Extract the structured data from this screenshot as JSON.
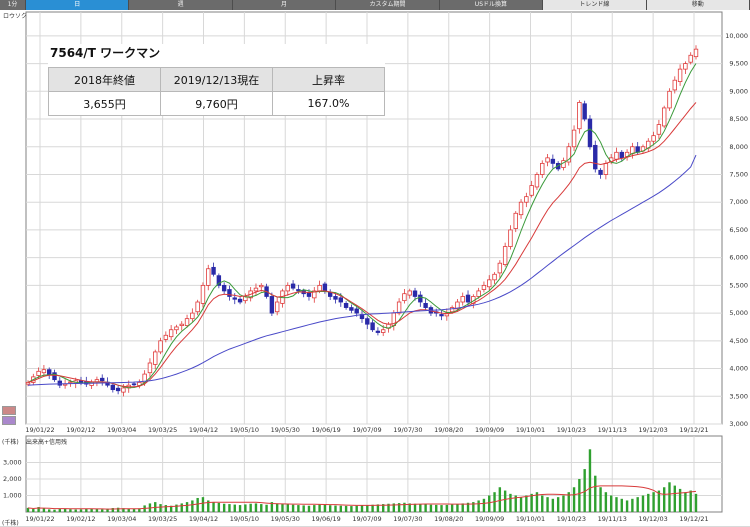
{
  "tabs": [
    {
      "label": "1分",
      "active": false
    },
    {
      "label": "日",
      "active": true
    },
    {
      "label": "週",
      "active": false
    },
    {
      "label": "月",
      "active": false
    },
    {
      "label": "カスタム期間",
      "active": false
    },
    {
      "label": "USドル換算",
      "active": false
    },
    {
      "label": "トレンド線",
      "active": false
    },
    {
      "label": "移動",
      "active": false
    }
  ],
  "chart_subtitle": "ロウソク足+移動平均",
  "volume_subtitle": "出来高+信用残",
  "unit_label": "(千株)",
  "info_box": {
    "stock_name": "7564/T ワークマン",
    "headers": [
      "2018年終値",
      "2019/12/13現在",
      "上昇率"
    ],
    "values": [
      "3,655円",
      "9,760円",
      "167.0%"
    ]
  },
  "colors": {
    "up": "#e03a3a",
    "down": "#2a2aa8",
    "ma_short": "#3a9a3a",
    "ma_mid": "#d83a3a",
    "ma_long": "#4a4ac8",
    "volume": "#2fa02f",
    "grid": "#d8d8d8",
    "frame": "#808080"
  },
  "chart_data": {
    "type": "line",
    "price_ylim": [
      3000,
      10250
    ],
    "price_ticks": [
      "3,000",
      "3,500",
      "4,000",
      "4,500",
      "5,000",
      "5,500",
      "6,000",
      "6,500",
      "7,000",
      "7,500",
      "8,000",
      "8,500",
      "9,000",
      "9,500",
      "10,000"
    ],
    "volume_ylim": [
      0,
      4000
    ],
    "volume_ticks": [
      "1,000",
      "2,000",
      "3,000"
    ],
    "x_ticks": [
      "19/01/22",
      "19/02/12",
      "19/03/04",
      "19/03/25",
      "19/04/12",
      "19/05/10",
      "19/05/30",
      "19/06/19",
      "19/07/09",
      "19/07/30",
      "19/08/20",
      "19/09/09",
      "19/10/01",
      "19/10/23",
      "19/11/13",
      "19/12/03",
      "19/12/21"
    ],
    "series": [
      {
        "values": [
          3750,
          3850,
          3950,
          3980,
          3900,
          3800,
          3700,
          3720,
          3760,
          3780,
          3740,
          3720,
          3760,
          3800,
          3780,
          3700,
          3620,
          3600,
          3650,
          3700,
          3720,
          3750,
          3900,
          4100,
          4300,
          4500,
          4600,
          4700,
          4750,
          4800,
          4900,
          5000,
          5200,
          5500,
          5800,
          5700,
          5500,
          5400,
          5300,
          5250,
          5200,
          5300,
          5400,
          5450,
          5500,
          5300,
          5000,
          5200,
          5400,
          5500,
          5450,
          5400,
          5350,
          5300,
          5400,
          5500,
          5400,
          5300,
          5250,
          5200,
          5100,
          5050,
          5000,
          4900,
          4800,
          4700,
          4650,
          4700,
          4800,
          5000,
          5200,
          5350,
          5400,
          5300,
          5200,
          5100,
          5000,
          5000,
          4950,
          5000,
          5100,
          5200,
          5300,
          5200,
          5300,
          5400,
          5500,
          5600,
          5700,
          5900,
          6200,
          6500,
          6800,
          7000,
          7100,
          7300,
          7500,
          7700,
          7800,
          7700,
          7600,
          7750,
          8000,
          8300,
          8800,
          8500,
          8000,
          7600,
          7500,
          7700,
          7800,
          7900,
          7800,
          7900,
          8000,
          7900,
          8000,
          8100,
          8200,
          8400,
          8700,
          9000,
          9200,
          9400,
          9500,
          9650,
          9760
        ]
      },
      {
        "values": [
          3750,
          3780,
          3820,
          3860,
          3880,
          3880,
          3870,
          3850,
          3830,
          3810,
          3790,
          3770,
          3760,
          3760,
          3760,
          3750,
          3730,
          3700,
          3680,
          3670,
          3670,
          3680,
          3720,
          3800,
          3900,
          4020,
          4150,
          4280,
          4400,
          4500,
          4600,
          4700,
          4820,
          4980,
          5150,
          5260,
          5320,
          5340,
          5330,
          5320,
          5300,
          5310,
          5340,
          5380,
          5410,
          5390,
          5330,
          5290,
          5300,
          5330,
          5360,
          5380,
          5380,
          5370,
          5380,
          5400,
          5400,
          5380,
          5350,
          5310,
          5260,
          5200,
          5140,
          5080,
          5010,
          4940,
          4870,
          4820,
          4800,
          4810,
          4860,
          4930,
          5000,
          5040,
          5060,
          5060,
          5040,
          5020,
          5000,
          4990,
          5000,
          5030,
          5080,
          5130,
          5180,
          5230,
          5290,
          5360,
          5430,
          5510,
          5610,
          5740,
          5880,
          6040,
          6200,
          6360,
          6530,
          6700,
          6860,
          6990,
          7090,
          7200,
          7320,
          7460,
          7620,
          7700,
          7720,
          7700,
          7680,
          7700,
          7730,
          7770,
          7790,
          7810,
          7840,
          7860,
          7880,
          7910,
          7950,
          8010,
          8100,
          8210,
          8330,
          8450,
          8570,
          8690,
          8800
        ]
      },
      {
        "values": [
          3700,
          3705,
          3710,
          3715,
          3720,
          3722,
          3724,
          3726,
          3728,
          3730,
          3732,
          3734,
          3736,
          3738,
          3740,
          3742,
          3744,
          3746,
          3748,
          3752,
          3756,
          3762,
          3770,
          3780,
          3795,
          3815,
          3840,
          3870,
          3900,
          3935,
          3970,
          4010,
          4055,
          4105,
          4160,
          4215,
          4265,
          4310,
          4350,
          4385,
          4420,
          4455,
          4490,
          4525,
          4560,
          4590,
          4615,
          4640,
          4665,
          4690,
          4715,
          4740,
          4765,
          4790,
          4815,
          4840,
          4860,
          4880,
          4900,
          4915,
          4930,
          4945,
          4960,
          4970,
          4980,
          4985,
          4990,
          4995,
          5000,
          5005,
          5012,
          5020,
          5028,
          5035,
          5040,
          5045,
          5050,
          5055,
          5060,
          5068,
          5078,
          5090,
          5105,
          5122,
          5140,
          5160,
          5185,
          5215,
          5250,
          5290,
          5335,
          5385,
          5440,
          5500,
          5565,
          5635,
          5710,
          5785,
          5860,
          5935,
          6010,
          6080,
          6150,
          6220,
          6290,
          6360,
          6425,
          6490,
          6550,
          6610,
          6670,
          6725,
          6780,
          6835,
          6890,
          6945,
          7000,
          7055,
          7110,
          7170,
          7235,
          7305,
          7380,
          7460,
          7545,
          7635,
          7850
        ]
      }
    ],
    "volume_values": [
      250,
      180,
      300,
      220,
      160,
      140,
      180,
      200,
      170,
      150,
      160,
      190,
      210,
      180,
      160,
      200,
      240,
      260,
      230,
      200,
      180,
      220,
      400,
      520,
      600,
      480,
      420,
      380,
      450,
      520,
      600,
      700,
      850,
      900,
      700,
      600,
      550,
      500,
      480,
      450,
      420,
      460,
      500,
      520,
      480,
      440,
      600,
      520,
      480,
      460,
      440,
      420,
      400,
      380,
      420,
      450,
      430,
      410,
      390,
      380,
      370,
      360,
      380,
      400,
      420,
      440,
      460,
      480,
      500,
      520,
      540,
      560,
      520,
      500,
      480,
      460,
      440,
      430,
      420,
      430,
      450,
      480,
      520,
      560,
      600,
      700,
      800,
      1000,
      1200,
      1500,
      1300,
      1100,
      1000,
      900,
      1000,
      1100,
      1200,
      1000,
      900,
      800,
      900,
      1000,
      1200,
      1500,
      2000,
      2600,
      3800,
      2200,
      1500,
      1200,
      1000,
      900,
      800,
      700,
      800,
      900,
      1000,
      1100,
      1200,
      1300,
      1500,
      1800,
      1600,
      1400,
      1200,
      1300,
      1100
    ]
  }
}
